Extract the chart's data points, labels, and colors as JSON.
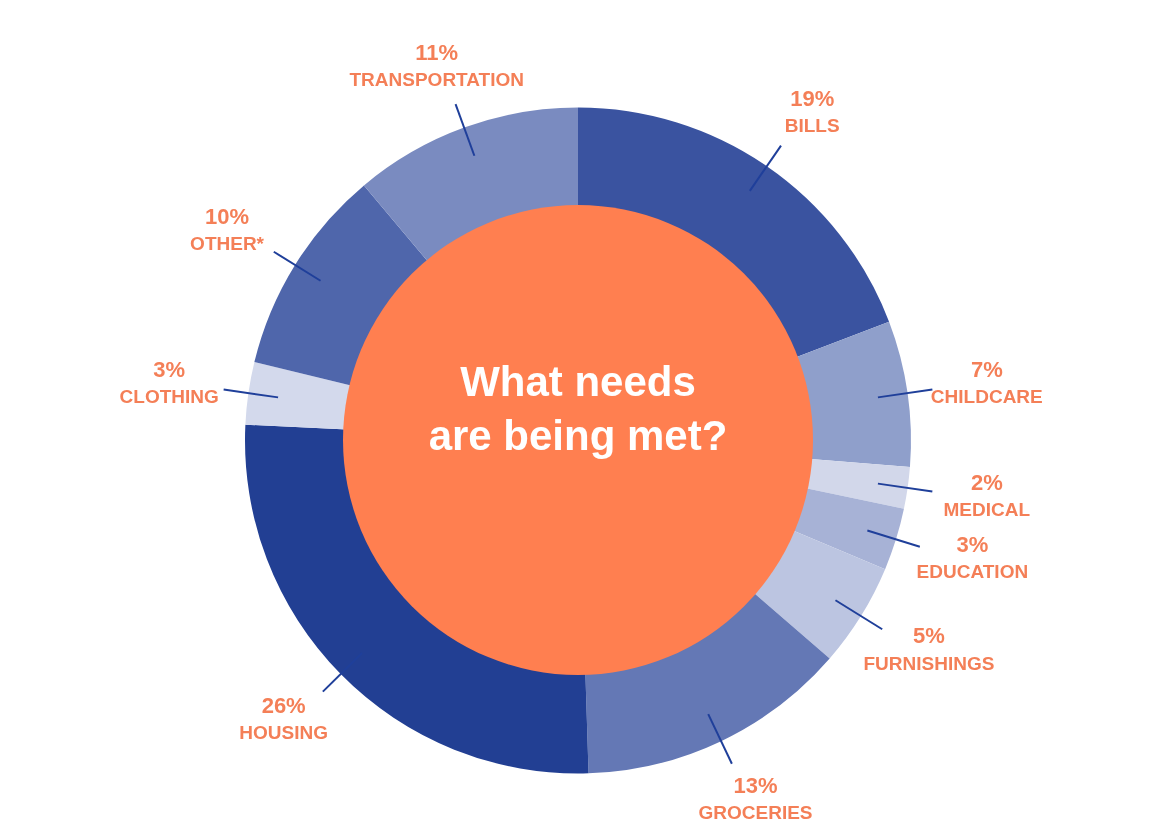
{
  "chart_data": {
    "type": "donut",
    "title": "What needs are being met?",
    "categories": [
      "BILLS",
      "CHILDCARE",
      "MEDICAL",
      "EDUCATION",
      "FURNISHINGS",
      "GROCERIES",
      "HOUSING",
      "CLOTHING",
      "OTHER*",
      "TRANSPORTATION"
    ],
    "values": [
      19,
      7,
      2,
      3,
      5,
      13,
      26,
      3,
      10,
      11
    ],
    "value_labels": [
      "19%",
      "7%",
      "2%",
      "3%",
      "5%",
      "13%",
      "26%",
      "3%",
      "10%",
      "11%"
    ],
    "colors": [
      "#3a53a0",
      "#8f9fcb",
      "#d2d7ea",
      "#a7b2d6",
      "#bcc5e1",
      "#6478b5",
      "#223f93",
      "#d3d9ec",
      "#4f66ab",
      "#7a8bc0"
    ],
    "legend": false
  }
}
